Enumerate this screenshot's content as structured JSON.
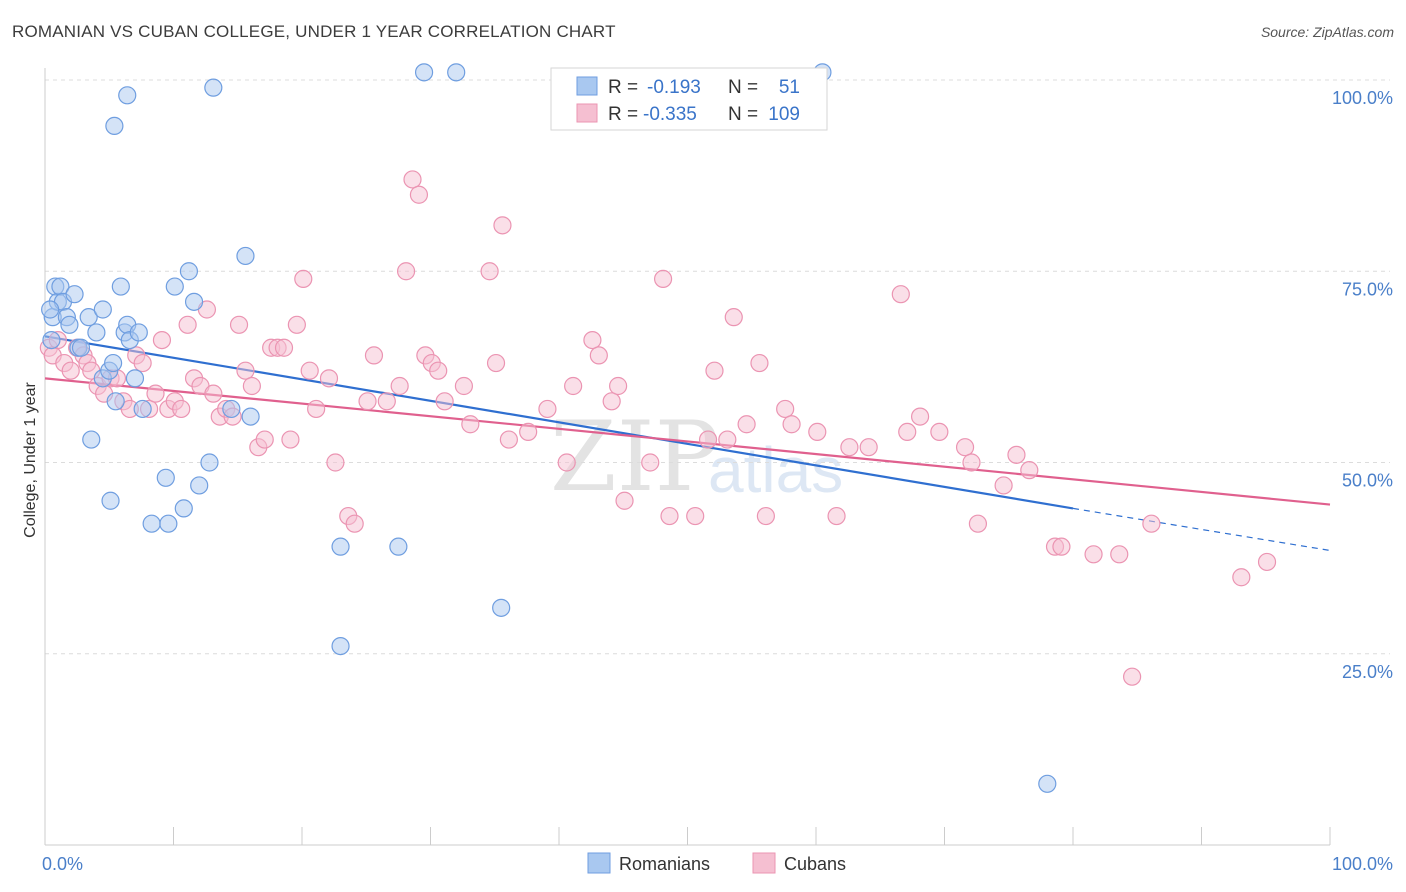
{
  "title": "ROMANIAN VS CUBAN COLLEGE, UNDER 1 YEAR CORRELATION CHART",
  "source": "Source: ZipAtlas.com",
  "watermark": {
    "zip": "ZIP",
    "atlas": "atlas"
  },
  "legend_box": {
    "romanians": {
      "r_label": "R =",
      "r_value": "-0.193",
      "n_label": "N =",
      "n_value": "51"
    },
    "cubans": {
      "r_label": "R =",
      "r_value": "-0.335",
      "n_label": "N =",
      "n_value": "109"
    }
  },
  "bottom_legend": {
    "romanians": "Romanians",
    "cubans": "Cubans"
  },
  "colors": {
    "romanians_fill": "#a9c8f0",
    "romanians_stroke": "#6f9ee0",
    "romanians_line": "#2f6fd0",
    "cubans_fill": "#f5bfd1",
    "cubans_stroke": "#eb94b2",
    "cubans_line": "#e0608e",
    "axis_label": "#4a7fc9"
  },
  "chart_data": {
    "type": "scatter",
    "title": "ROMANIAN VS CUBAN COLLEGE, UNDER 1 YEAR CORRELATION CHART",
    "xlabel": "",
    "ylabel": "College, Under 1 year",
    "xlim": [
      0,
      100
    ],
    "ylim": [
      0,
      100
    ],
    "x_tick_labels": [
      "0.0%",
      "100.0%"
    ],
    "y_tick_labels": [
      "25.0%",
      "50.0%",
      "75.0%",
      "100.0%"
    ],
    "y_ticks": [
      25,
      50,
      75,
      100
    ],
    "grid": "horizontal dashed",
    "legend": "top-center",
    "series": [
      {
        "name": "Romanians",
        "R": -0.193,
        "N": 51,
        "trend": {
          "x0": 0,
          "y0": 66.5,
          "x1": 80,
          "y1": 44.0,
          "dashed_to_x": 100,
          "dashed_to_y": 38.5
        },
        "points": [
          [
            0.5,
            66
          ],
          [
            0.6,
            69
          ],
          [
            0.8,
            73
          ],
          [
            1.0,
            71
          ],
          [
            1.2,
            73
          ],
          [
            1.4,
            71
          ],
          [
            1.7,
            69
          ],
          [
            1.9,
            68
          ],
          [
            2.3,
            72
          ],
          [
            2.6,
            65
          ],
          [
            2.8,
            65
          ],
          [
            3.4,
            69
          ],
          [
            4.0,
            67
          ],
          [
            4.5,
            61
          ],
          [
            4.5,
            70
          ],
          [
            5.0,
            62
          ],
          [
            5.3,
            63
          ],
          [
            5.5,
            58
          ],
          [
            5.9,
            73
          ],
          [
            6.2,
            67
          ],
          [
            6.4,
            68
          ],
          [
            6.6,
            66
          ],
          [
            7.0,
            61
          ],
          [
            7.3,
            67
          ],
          [
            7.6,
            57
          ],
          [
            3.6,
            53
          ],
          [
            5.1,
            45
          ],
          [
            8.3,
            42
          ],
          [
            9.4,
            48
          ],
          [
            9.6,
            42
          ],
          [
            10.1,
            73
          ],
          [
            10.8,
            44
          ],
          [
            11.2,
            75
          ],
          [
            11.6,
            71
          ],
          [
            12.0,
            47
          ],
          [
            12.8,
            50
          ],
          [
            14.5,
            57
          ],
          [
            15.6,
            77
          ],
          [
            16.0,
            56
          ],
          [
            13.1,
            99
          ],
          [
            6.4,
            98
          ],
          [
            5.4,
            94
          ],
          [
            29.5,
            101
          ],
          [
            32.0,
            101
          ],
          [
            23.0,
            39
          ],
          [
            27.5,
            39
          ],
          [
            23.0,
            26
          ],
          [
            35.5,
            31
          ],
          [
            60.5,
            101
          ],
          [
            78.0,
            8
          ],
          [
            0.4,
            70
          ]
        ]
      },
      {
        "name": "Cubans",
        "R": -0.335,
        "N": 109,
        "trend": {
          "x0": 0,
          "y0": 61.0,
          "x1": 100,
          "y1": 44.5
        },
        "points": [
          [
            0.3,
            65
          ],
          [
            0.6,
            64
          ],
          [
            1.0,
            66
          ],
          [
            1.5,
            63
          ],
          [
            2.0,
            62
          ],
          [
            2.5,
            65
          ],
          [
            3.0,
            64
          ],
          [
            3.3,
            63
          ],
          [
            3.6,
            62
          ],
          [
            4.1,
            60
          ],
          [
            4.6,
            59
          ],
          [
            5.1,
            61
          ],
          [
            5.6,
            61
          ],
          [
            6.1,
            58
          ],
          [
            6.6,
            57
          ],
          [
            7.1,
            64
          ],
          [
            7.6,
            63
          ],
          [
            8.1,
            57
          ],
          [
            8.6,
            59
          ],
          [
            9.1,
            66
          ],
          [
            9.6,
            57
          ],
          [
            10.1,
            58
          ],
          [
            10.6,
            57
          ],
          [
            11.1,
            68
          ],
          [
            11.6,
            61
          ],
          [
            12.1,
            60
          ],
          [
            12.6,
            70
          ],
          [
            13.1,
            59
          ],
          [
            13.6,
            56
          ],
          [
            14.1,
            57
          ],
          [
            14.6,
            56
          ],
          [
            15.1,
            68
          ],
          [
            15.6,
            62
          ],
          [
            16.1,
            60
          ],
          [
            16.6,
            52
          ],
          [
            17.1,
            53
          ],
          [
            17.6,
            65
          ],
          [
            18.1,
            65
          ],
          [
            18.6,
            65
          ],
          [
            19.1,
            53
          ],
          [
            19.6,
            68
          ],
          [
            20.1,
            74
          ],
          [
            20.6,
            62
          ],
          [
            21.1,
            57
          ],
          [
            22.1,
            61
          ],
          [
            22.6,
            50
          ],
          [
            23.6,
            43
          ],
          [
            24.1,
            42
          ],
          [
            25.1,
            58
          ],
          [
            25.6,
            64
          ],
          [
            26.6,
            58
          ],
          [
            27.6,
            60
          ],
          [
            28.1,
            75
          ],
          [
            28.6,
            87
          ],
          [
            29.1,
            85
          ],
          [
            29.6,
            64
          ],
          [
            30.1,
            63
          ],
          [
            30.6,
            62
          ],
          [
            31.1,
            58
          ],
          [
            32.6,
            60
          ],
          [
            33.1,
            55
          ],
          [
            34.6,
            75
          ],
          [
            35.1,
            63
          ],
          [
            35.6,
            81
          ],
          [
            36.1,
            53
          ],
          [
            37.6,
            54
          ],
          [
            39.1,
            57
          ],
          [
            40.6,
            50
          ],
          [
            41.1,
            60
          ],
          [
            42.6,
            66
          ],
          [
            43.1,
            64
          ],
          [
            44.1,
            58
          ],
          [
            44.6,
            60
          ],
          [
            45.1,
            45
          ],
          [
            47.1,
            50
          ],
          [
            48.1,
            74
          ],
          [
            48.6,
            43
          ],
          [
            50.6,
            43
          ],
          [
            51.6,
            53
          ],
          [
            52.1,
            62
          ],
          [
            53.1,
            53
          ],
          [
            53.6,
            69
          ],
          [
            54.6,
            55
          ],
          [
            55.6,
            63
          ],
          [
            56.1,
            43
          ],
          [
            57.6,
            57
          ],
          [
            58.1,
            55
          ],
          [
            60.1,
            54
          ],
          [
            61.6,
            43
          ],
          [
            62.6,
            52
          ],
          [
            64.1,
            52
          ],
          [
            66.6,
            72
          ],
          [
            67.1,
            54
          ],
          [
            68.1,
            56
          ],
          [
            69.6,
            54
          ],
          [
            71.6,
            52
          ],
          [
            72.1,
            50
          ],
          [
            72.6,
            42
          ],
          [
            74.6,
            47
          ],
          [
            75.6,
            51
          ],
          [
            76.6,
            49
          ],
          [
            78.6,
            39
          ],
          [
            79.1,
            39
          ],
          [
            81.6,
            38
          ],
          [
            83.6,
            38
          ],
          [
            84.6,
            22
          ],
          [
            86.1,
            42
          ],
          [
            93.1,
            35
          ],
          [
            95.1,
            37
          ]
        ]
      }
    ]
  }
}
